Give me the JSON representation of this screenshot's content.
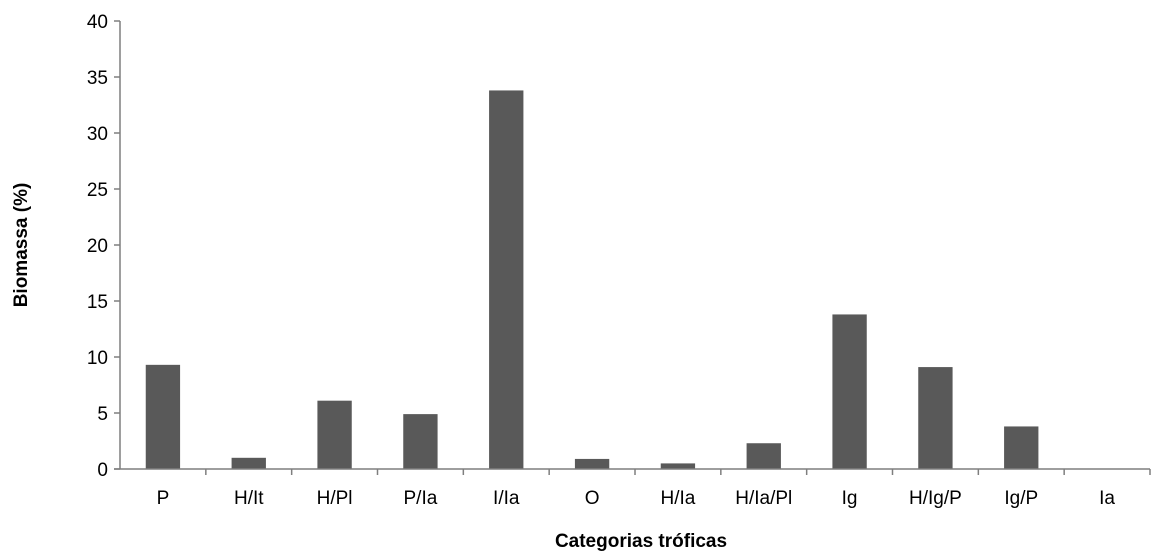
{
  "chart_data": {
    "type": "bar",
    "title": "",
    "xlabel": "Categorias tróficas",
    "ylabel": "Biomassa (%)",
    "ylim": [
      0,
      40
    ],
    "yticks": [
      0,
      5,
      10,
      15,
      20,
      25,
      30,
      35,
      40
    ],
    "grid": false,
    "legend": "none",
    "bar_color": "#595959",
    "axis_color": "#7f7f7f",
    "categories": [
      "P",
      "H/It",
      "H/Pl",
      "P/Ia",
      "I/Ia",
      "O",
      "H/Ia",
      "H/Ia/Pl",
      "Ig",
      "H/Ig/P",
      "Ig/P",
      "Ia"
    ],
    "values": [
      9.3,
      1.0,
      6.1,
      4.9,
      33.8,
      0.9,
      0.5,
      2.3,
      13.8,
      9.1,
      3.8,
      0
    ]
  }
}
